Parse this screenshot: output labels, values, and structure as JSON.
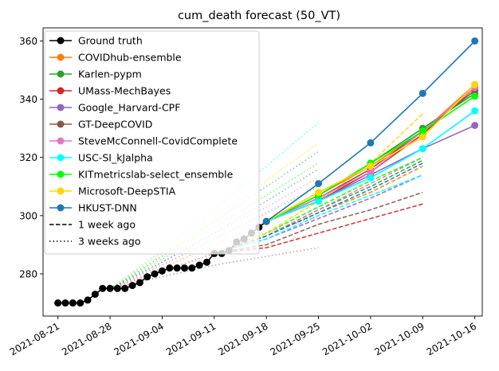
{
  "chart_data": {
    "type": "line",
    "title": "cum_death forecast (50_VT)",
    "xlabel": "",
    "ylabel": "",
    "x_ticks": [
      "2021-08-21",
      "2021-08-28",
      "2021-09-04",
      "2021-09-11",
      "2021-09-18",
      "2021-09-25",
      "2021-10-02",
      "2021-10-09",
      "2021-10-16"
    ],
    "y_ticks": [
      280,
      300,
      320,
      340,
      360
    ],
    "xlim": [
      "2021-08-19",
      "2021-10-17"
    ],
    "ylim": [
      265.5,
      364.5
    ],
    "grid": false,
    "legend_position": "top-left",
    "legend": [
      {
        "label": "Ground truth",
        "color": "#000000",
        "style": "solid",
        "marker": true
      },
      {
        "label": "COVIDhub-ensemble",
        "color": "#ff7f0e",
        "style": "solid",
        "marker": true
      },
      {
        "label": "Karlen-pypm",
        "color": "#2ca02c",
        "style": "solid",
        "marker": true
      },
      {
        "label": "UMass-MechBayes",
        "color": "#d62728",
        "style": "solid",
        "marker": true
      },
      {
        "label": "Google_Harvard-CPF",
        "color": "#9467bd",
        "style": "solid",
        "marker": true
      },
      {
        "label": "GT-DeepCOVID",
        "color": "#8c564b",
        "style": "solid",
        "marker": true
      },
      {
        "label": "SteveMcConnell-CovidComplete",
        "color": "#e377c2",
        "style": "solid",
        "marker": true
      },
      {
        "label": "USC-SI_kJalpha",
        "color": "#00ffff",
        "style": "solid",
        "marker": true
      },
      {
        "label": "KITmetricslab-select_ensemble",
        "color": "#00ff00",
        "style": "solid",
        "marker": true
      },
      {
        "label": "Microsoft-DeepSTIA",
        "color": "#ffd700",
        "style": "solid",
        "marker": true
      },
      {
        "label": "HKUST-DNN",
        "color": "#1f77b4",
        "style": "solid",
        "marker": true
      },
      {
        "label": "1 week ago",
        "color": "#000000",
        "style": "dashed",
        "marker": false
      },
      {
        "label": "3 weeks ago",
        "color": "#000000",
        "style": "dotted",
        "marker": false
      }
    ],
    "ground_truth": {
      "name": "Ground truth",
      "color": "#000000",
      "x": [
        "2021-08-21",
        "2021-08-22",
        "2021-08-23",
        "2021-08-24",
        "2021-08-25",
        "2021-08-26",
        "2021-08-27",
        "2021-08-28",
        "2021-08-29",
        "2021-08-30",
        "2021-08-31",
        "2021-09-01",
        "2021-09-02",
        "2021-09-03",
        "2021-09-04",
        "2021-09-05",
        "2021-09-06",
        "2021-09-07",
        "2021-09-08",
        "2021-09-09",
        "2021-09-10",
        "2021-09-11",
        "2021-09-12",
        "2021-09-13",
        "2021-09-14",
        "2021-09-15",
        "2021-09-16",
        "2021-09-17",
        "2021-09-18"
      ],
      "y": [
        270,
        270,
        270,
        270,
        271,
        273,
        275,
        275,
        275,
        275,
        276,
        277,
        279,
        280,
        281,
        282,
        282,
        282,
        282,
        283,
        284,
        287,
        287,
        288,
        291,
        292,
        294,
        296,
        298
      ]
    },
    "forecasts": [
      {
        "name": "COVIDhub-ensemble",
        "color": "#ff7f0e",
        "x": [
          "2021-09-18",
          "2021-09-25",
          "2021-10-02",
          "2021-10-09",
          "2021-10-16"
        ],
        "y": [
          298,
          307,
          317,
          329,
          345
        ]
      },
      {
        "name": "Karlen-pypm",
        "color": "#2ca02c",
        "x": [
          "2021-09-18",
          "2021-09-25",
          "2021-10-02",
          "2021-10-09",
          "2021-10-16"
        ],
        "y": [
          298,
          307,
          318,
          330,
          342
        ]
      },
      {
        "name": "UMass-MechBayes",
        "color": "#d62728",
        "x": [
          "2021-09-18",
          "2021-09-25",
          "2021-10-02",
          "2021-10-09",
          "2021-10-16"
        ],
        "y": [
          298,
          305,
          315,
          328,
          344
        ]
      },
      {
        "name": "Google_Harvard-CPF",
        "color": "#9467bd",
        "x": [
          "2021-09-18",
          "2021-09-25",
          "2021-10-02",
          "2021-10-09",
          "2021-10-16"
        ],
        "y": [
          298,
          305,
          314,
          323,
          331
        ]
      },
      {
        "name": "GT-DeepCOVID",
        "color": "#8c564b",
        "x": [
          "2021-09-18",
          "2021-09-25",
          "2021-10-02",
          "2021-10-09",
          "2021-10-16"
        ],
        "y": [
          298,
          306,
          316,
          329,
          343
        ]
      },
      {
        "name": "SteveMcConnell-CovidComplete",
        "color": "#e377c2",
        "x": [
          "2021-09-18",
          "2021-09-25",
          "2021-10-02",
          "2021-10-09",
          "2021-10-16"
        ],
        "y": [
          298,
          306,
          315,
          329,
          344
        ]
      },
      {
        "name": "USC-SI_kJalpha",
        "color": "#00ffff",
        "x": [
          "2021-09-18",
          "2021-09-25",
          "2021-10-02",
          "2021-10-09",
          "2021-10-16"
        ],
        "y": [
          298,
          305,
          313,
          323,
          336
        ]
      },
      {
        "name": "KITmetricslab-select_ensemble",
        "color": "#00ff00",
        "x": [
          "2021-09-18",
          "2021-09-25",
          "2021-10-02",
          "2021-10-09",
          "2021-10-16"
        ],
        "y": [
          298,
          307,
          318,
          329,
          341
        ]
      },
      {
        "name": "Microsoft-DeepSTIA",
        "color": "#ffd700",
        "x": [
          "2021-09-18",
          "2021-09-25",
          "2021-10-02",
          "2021-10-09",
          "2021-10-16"
        ],
        "y": [
          298,
          308,
          317,
          327,
          345
        ]
      },
      {
        "name": "HKUST-DNN",
        "color": "#1f77b4",
        "x": [
          "2021-09-18",
          "2021-09-25",
          "2021-10-02",
          "2021-10-09",
          "2021-10-16"
        ],
        "y": [
          298,
          311,
          325,
          342,
          360
        ]
      }
    ],
    "forecasts_1_week_ago": [
      {
        "name": "COVIDhub-ensemble",
        "color": "#ff7f0e",
        "x": [
          "2021-09-11",
          "2021-09-18",
          "2021-09-25",
          "2021-10-02",
          "2021-10-09"
        ],
        "y": [
          287,
          293,
          301,
          308,
          317
        ]
      },
      {
        "name": "Karlen-pypm",
        "color": "#2ca02c",
        "x": [
          "2021-09-11",
          "2021-09-18",
          "2021-09-25",
          "2021-10-02",
          "2021-10-09"
        ],
        "y": [
          287,
          293,
          302,
          310,
          319
        ]
      },
      {
        "name": "UMass-MechBayes",
        "color": "#d62728",
        "x": [
          "2021-09-11",
          "2021-09-18",
          "2021-09-25",
          "2021-10-02",
          "2021-10-09"
        ],
        "y": [
          287,
          289,
          294,
          299,
          304
        ]
      },
      {
        "name": "Google_Harvard-CPF",
        "color": "#9467bd",
        "x": [
          "2021-09-11",
          "2021-09-18",
          "2021-09-25",
          "2021-10-02",
          "2021-10-09"
        ],
        "y": [
          287,
          292,
          299,
          306,
          314
        ]
      },
      {
        "name": "GT-DeepCOVID",
        "color": "#8c564b",
        "x": [
          "2021-09-11",
          "2021-09-18",
          "2021-09-25",
          "2021-10-02",
          "2021-10-09"
        ],
        "y": [
          287,
          290,
          297,
          302,
          308
        ]
      },
      {
        "name": "SteveMcConnell-CovidComplete",
        "color": "#e377c2",
        "x": [
          "2021-09-11",
          "2021-09-18",
          "2021-09-25",
          "2021-10-02",
          "2021-10-09"
        ],
        "y": [
          287,
          293,
          302,
          311,
          320
        ]
      },
      {
        "name": "USC-SI_kJalpha",
        "color": "#00ffff",
        "x": [
          "2021-09-11",
          "2021-09-18",
          "2021-09-25",
          "2021-10-02",
          "2021-10-09"
        ],
        "y": [
          287,
          292,
          300,
          307,
          314
        ]
      },
      {
        "name": "KITmetricslab-select_ensemble",
        "color": "#00ff00",
        "x": [
          "2021-09-11",
          "2021-09-18",
          "2021-09-25",
          "2021-10-02",
          "2021-10-09"
        ],
        "y": [
          287,
          294,
          303,
          312,
          320
        ]
      },
      {
        "name": "Microsoft-DeepSTIA",
        "color": "#ffd700",
        "x": [
          "2021-09-11",
          "2021-09-18",
          "2021-09-25",
          "2021-10-02",
          "2021-10-09"
        ],
        "y": [
          287,
          294,
          305,
          318,
          335
        ]
      },
      {
        "name": "HKUST-DNN",
        "color": "#1f77b4",
        "x": [
          "2021-09-11",
          "2021-09-18",
          "2021-09-25",
          "2021-10-02",
          "2021-10-09"
        ],
        "y": [
          287,
          293,
          301,
          309,
          318
        ]
      }
    ],
    "forecasts_3_weeks_ago": [
      {
        "name": "COVIDhub-ensemble",
        "color": "#ff7f0e",
        "x": [
          "2021-08-28",
          "2021-09-04",
          "2021-09-11",
          "2021-09-18",
          "2021-09-25"
        ],
        "y": [
          275,
          282,
          290,
          298,
          306
        ]
      },
      {
        "name": "Karlen-pypm",
        "color": "#2ca02c",
        "x": [
          "2021-08-28",
          "2021-09-04",
          "2021-09-11",
          "2021-09-18",
          "2021-09-25"
        ],
        "y": [
          275,
          286,
          298,
          310,
          322
        ]
      },
      {
        "name": "UMass-MechBayes",
        "color": "#d62728",
        "x": [
          "2021-08-28",
          "2021-09-04",
          "2021-09-11",
          "2021-09-18",
          "2021-09-25"
        ],
        "y": [
          275,
          281,
          287,
          294,
          300
        ]
      },
      {
        "name": "Google_Harvard-CPF",
        "color": "#9467bd",
        "x": [
          "2021-08-28",
          "2021-09-04",
          "2021-09-11",
          "2021-09-18",
          "2021-09-25"
        ],
        "y": [
          275,
          283,
          292,
          301,
          310
        ]
      },
      {
        "name": "GT-DeepCOVID",
        "color": "#8c564b",
        "x": [
          "2021-08-28",
          "2021-09-04",
          "2021-09-11",
          "2021-09-18",
          "2021-09-25"
        ],
        "y": [
          275,
          279,
          283,
          286,
          289
        ]
      },
      {
        "name": "SteveMcConnell-CovidComplete",
        "color": "#e377c2",
        "x": [
          "2021-08-28",
          "2021-09-04",
          "2021-09-11",
          "2021-09-18",
          "2021-09-25"
        ],
        "y": [
          275,
          284,
          294,
          303,
          313
        ]
      },
      {
        "name": "USC-SI_kJalpha",
        "color": "#00ffff",
        "x": [
          "2021-08-28",
          "2021-09-04",
          "2021-09-11",
          "2021-09-18",
          "2021-09-25"
        ],
        "y": [
          275,
          288,
          302,
          317,
          332
        ]
      },
      {
        "name": "KITmetricslab-select_ensemble",
        "color": "#00ff00",
        "x": [
          "2021-08-28",
          "2021-09-04",
          "2021-09-11",
          "2021-09-18",
          "2021-09-25"
        ],
        "y": [
          275,
          285,
          296,
          307,
          318
        ]
      },
      {
        "name": "Microsoft-DeepSTIA",
        "color": "#ffd700",
        "x": [
          "2021-08-28",
          "2021-09-04",
          "2021-09-11",
          "2021-09-18",
          "2021-09-25"
        ],
        "y": [
          275,
          287,
          299,
          312,
          325
        ]
      },
      {
        "name": "HKUST-DNN",
        "color": "#1f77b4",
        "x": [
          "2021-08-28",
          "2021-09-04",
          "2021-09-11",
          "2021-09-18",
          "2021-09-25"
        ],
        "y": [
          275,
          284,
          294,
          305,
          316
        ]
      }
    ]
  }
}
